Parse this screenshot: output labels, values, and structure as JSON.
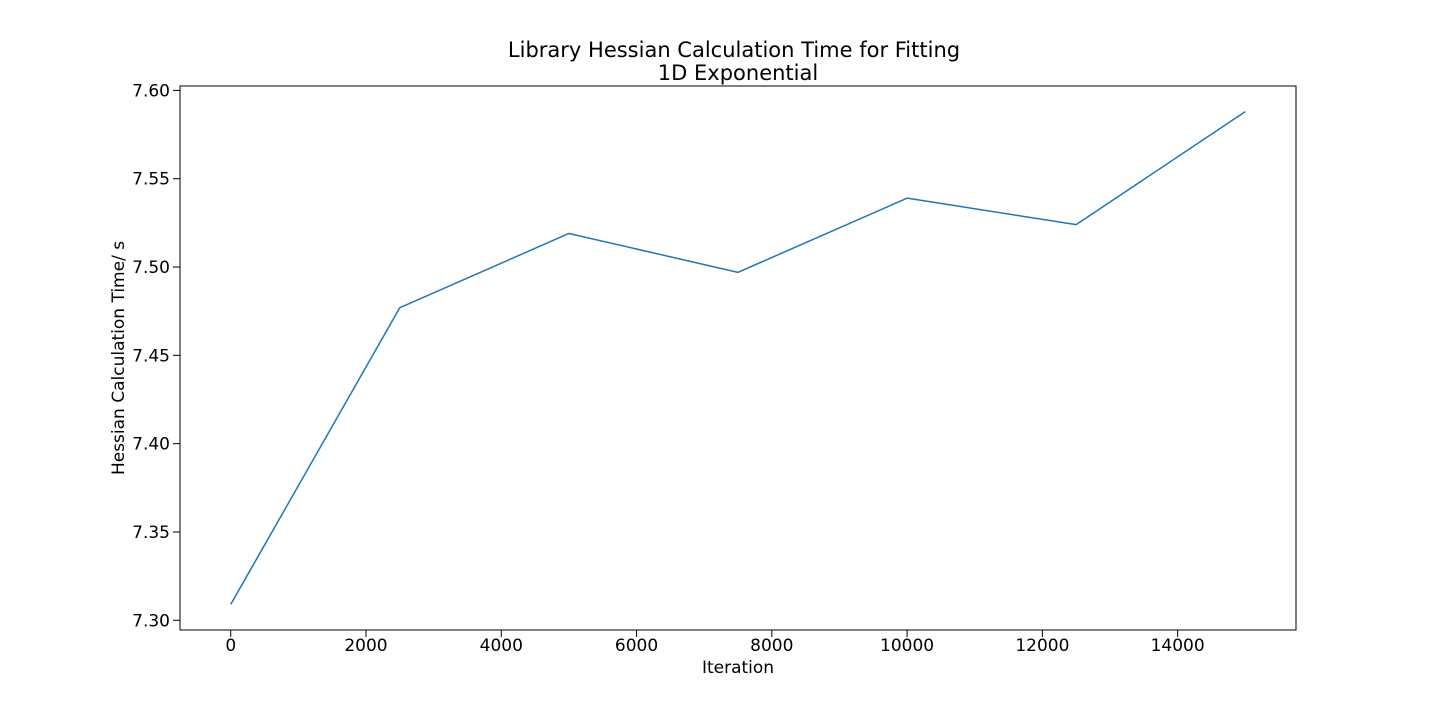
{
  "chart_data": {
    "type": "line",
    "title": "Library Hessian Calculation Time for Fitting",
    "subtitle": "1D Exponential",
    "xlabel": "Iteration",
    "ylabel": "Hessian Calculation Time/ s",
    "xlim": [
      -750,
      15750
    ],
    "ylim": [
      7.2945,
      7.6025
    ],
    "xticks": [
      0,
      2000,
      4000,
      6000,
      8000,
      10000,
      12000,
      14000
    ],
    "xtick_labels": [
      "0",
      "2000",
      "4000",
      "6000",
      "8000",
      "10000",
      "12000",
      "14000"
    ],
    "yticks": [
      7.3,
      7.35,
      7.4,
      7.45,
      7.5,
      7.55,
      7.6
    ],
    "ytick_labels": [
      "7.30",
      "7.35",
      "7.40",
      "7.45",
      "7.50",
      "7.55",
      "7.60"
    ],
    "grid": false,
    "series": [
      {
        "color": "#1f77b4",
        "x": [
          0,
          2500,
          5000,
          7500,
          10000,
          12500,
          15000
        ],
        "y": [
          7.309,
          7.477,
          7.519,
          7.497,
          7.539,
          7.524,
          7.588
        ]
      }
    ]
  }
}
